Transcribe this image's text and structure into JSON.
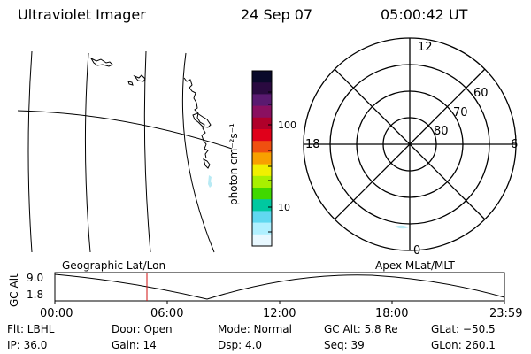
{
  "header": {
    "instrument": "Ultraviolet Imager",
    "date": "24 Sep 07",
    "time": "05:00:42 UT"
  },
  "colorbar": {
    "unit_label": "photon cm⁻²s⁻¹",
    "ticks": [
      "100",
      "10"
    ],
    "colors": [
      "#0a0a2a",
      "#2a0a40",
      "#5a1a70",
      "#8a1060",
      "#b0002a",
      "#e0001a",
      "#f05010",
      "#f8a000",
      "#f0f000",
      "#a8f000",
      "#40d800",
      "#00c8a0",
      "#60d8f0",
      "#b0f0ff",
      "#e8f8ff"
    ]
  },
  "polar": {
    "mlt_labels": [
      "12",
      "18",
      "6",
      "0"
    ],
    "lat_labels": [
      "60",
      "70",
      "80"
    ]
  },
  "altitude_plot": {
    "ylabel": "GC Alt",
    "y_ticks": [
      "9.0",
      "1.8"
    ],
    "left_caption": "Geographic Lat/Lon",
    "right_caption": "Apex MLat/MLT",
    "x_ticks": [
      "00:00",
      "06:00",
      "12:00",
      "18:00",
      "23:59"
    ],
    "marker_color": "#d01010"
  },
  "footer": {
    "row1": {
      "filter": "Flt: LBHL",
      "door": "Door: Open",
      "mode": "Mode:  Normal",
      "gc_alt": "GC Alt: 5.8 Re",
      "glat": "GLat: −50.5"
    },
    "row2": {
      "ip": "IP: 36.0",
      "gain": "Gain: 14",
      "dsp": "Dsp:      4.0",
      "seq": "Seq: 39",
      "glon": "GLon: 260.1"
    }
  }
}
